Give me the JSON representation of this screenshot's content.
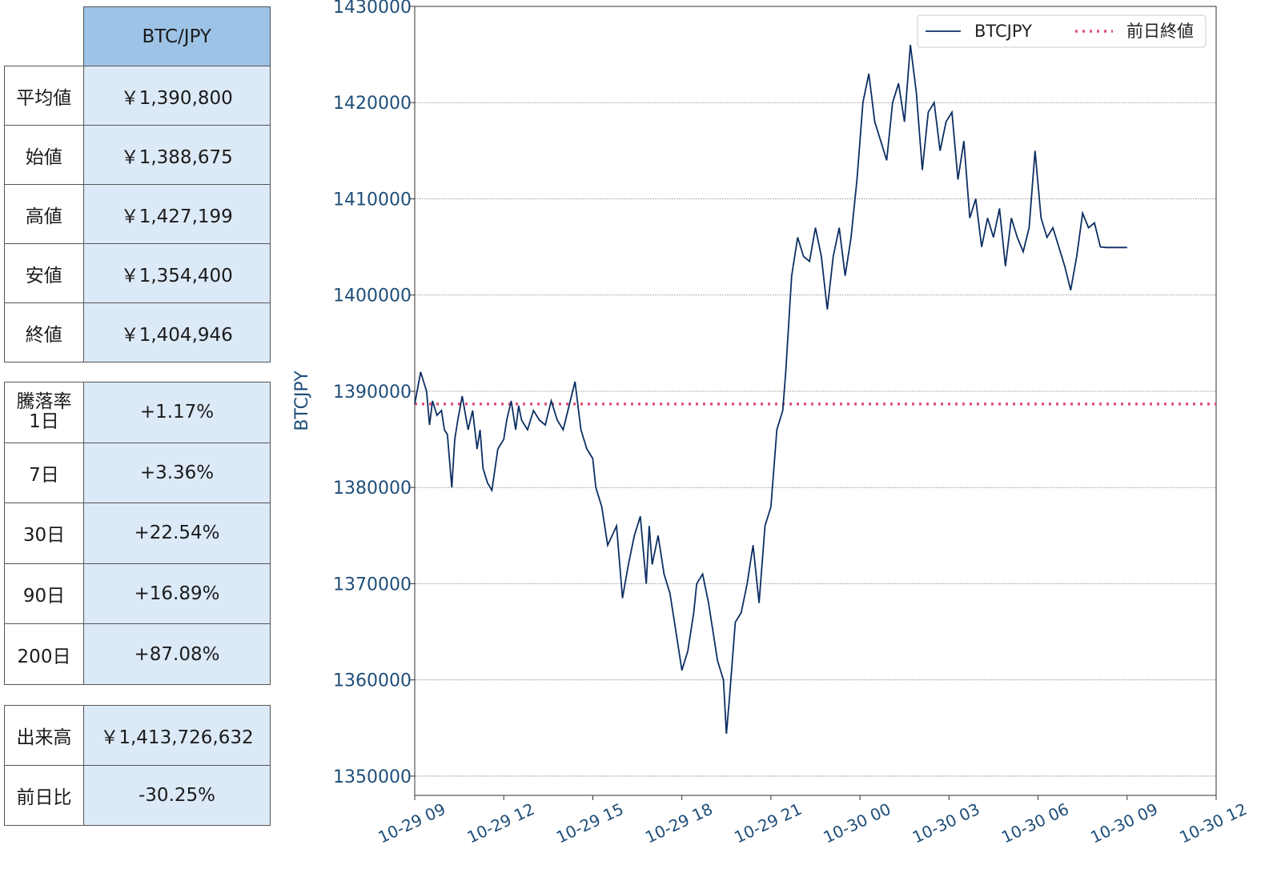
{
  "summary_table": {
    "header": "BTC/JPY",
    "rows": [
      {
        "label": "平均値",
        "value": "￥1,390,800"
      },
      {
        "label": "始値",
        "value": "￥1,388,675"
      },
      {
        "label": "高値",
        "value": "￥1,427,199"
      },
      {
        "label": "安値",
        "value": "￥1,354,400"
      },
      {
        "label": "終値",
        "value": "￥1,404,946"
      }
    ]
  },
  "change_table": {
    "first_label_line1": "騰落率",
    "first_label_line2": "1日",
    "rows": [
      {
        "label": "1日",
        "value": "+1.17%"
      },
      {
        "label": "7日",
        "value": "+3.36%"
      },
      {
        "label": "30日",
        "value": "+22.54%"
      },
      {
        "label": "90日",
        "value": "+16.89%"
      },
      {
        "label": "200日",
        "value": "+87.08%"
      }
    ]
  },
  "volume_table": {
    "rows": [
      {
        "label": "出来高",
        "value": "￥1,413,726,632"
      },
      {
        "label": "前日比",
        "value": "-30.25%"
      }
    ]
  },
  "chart_data": {
    "type": "line",
    "ylabel": "BTCJPY",
    "ylim": [
      1348000,
      1430000
    ],
    "yticks": [
      1350000,
      1360000,
      1370000,
      1380000,
      1390000,
      1400000,
      1410000,
      1420000,
      1430000
    ],
    "xlim_hours": [
      0,
      27
    ],
    "xticks": [
      "10-29 09",
      "10-29 12",
      "10-29 15",
      "10-29 18",
      "10-29 21",
      "10-30 00",
      "10-30 03",
      "10-30 06",
      "10-30 09",
      "10-30 12"
    ],
    "grid": "horizontal",
    "legend": "top-right",
    "colors": {
      "line": "#0d2f63",
      "ref": "#e0507a"
    },
    "series": [
      {
        "name": "BTCJPY",
        "x": [
          0,
          0.2,
          0.4,
          0.5,
          0.6,
          0.75,
          0.9,
          1.0,
          1.1,
          1.25,
          1.35,
          1.45,
          1.6,
          1.8,
          1.95,
          2.1,
          2.2,
          2.3,
          2.45,
          2.6,
          2.8,
          3.0,
          3.1,
          3.25,
          3.4,
          3.5,
          3.6,
          3.8,
          4.0,
          4.2,
          4.4,
          4.6,
          4.8,
          5.0,
          5.2,
          5.4,
          5.6,
          5.8,
          6.0,
          6.1,
          6.3,
          6.5,
          6.8,
          7.0,
          7.2,
          7.4,
          7.6,
          7.8,
          7.9,
          8.0,
          8.2,
          8.4,
          8.6,
          8.8,
          9.0,
          9.2,
          9.4,
          9.5,
          9.7,
          9.9,
          10.2,
          10.4,
          10.5,
          10.6,
          10.8,
          11.0,
          11.2,
          11.4,
          11.6,
          11.8,
          12.0,
          12.2,
          12.4,
          12.5,
          12.7,
          12.9,
          13.1,
          13.3,
          13.5,
          13.7,
          13.9,
          14.1,
          14.3,
          14.5,
          14.7,
          14.9,
          15.1,
          15.3,
          15.5,
          15.7,
          15.9,
          16.1,
          16.3,
          16.5,
          16.7,
          16.9,
          17.1,
          17.3,
          17.5,
          17.7,
          17.9,
          18.1,
          18.3,
          18.5,
          18.7,
          18.9,
          19.1,
          19.3,
          19.5,
          19.7,
          19.9,
          20.1,
          20.3,
          20.5,
          20.7,
          20.9,
          21.1,
          21.3,
          21.5,
          21.7,
          21.9,
          22.1,
          22.3,
          22.5,
          22.7,
          22.9,
          23.1,
          23.3,
          23.5,
          23.7,
          23.9,
          24.0
        ],
        "y": [
          1388675,
          1392000,
          1390000,
          1386500,
          1389000,
          1387500,
          1388000,
          1386000,
          1385500,
          1380000,
          1385000,
          1387000,
          1389500,
          1386000,
          1388000,
          1384000,
          1386000,
          1382000,
          1380500,
          1379700,
          1384000,
          1385000,
          1387000,
          1389000,
          1386000,
          1388500,
          1387000,
          1386000,
          1388000,
          1387000,
          1386500,
          1389000,
          1387000,
          1386000,
          1388500,
          1391000,
          1386000,
          1384000,
          1383000,
          1380000,
          1378000,
          1374000,
          1376000,
          1368500,
          1372000,
          1375000,
          1377000,
          1370000,
          1376000,
          1372000,
          1375000,
          1371000,
          1369000,
          1365000,
          1361000,
          1363000,
          1367000,
          1370000,
          1371000,
          1368000,
          1362000,
          1360000,
          1354400,
          1358000,
          1366000,
          1367000,
          1370000,
          1374000,
          1368000,
          1376000,
          1378000,
          1386000,
          1388000,
          1392000,
          1402000,
          1406000,
          1404000,
          1403500,
          1407000,
          1404000,
          1398500,
          1404000,
          1407000,
          1402000,
          1406000,
          1412000,
          1420000,
          1423000,
          1418000,
          1416000,
          1414000,
          1420000,
          1422000,
          1418000,
          1426000,
          1421000,
          1413000,
          1419000,
          1420000,
          1415000,
          1418000,
          1419000,
          1412000,
          1416000,
          1408000,
          1410000,
          1405000,
          1408000,
          1406000,
          1409000,
          1403000,
          1408000,
          1406000,
          1404500,
          1407000,
          1415000,
          1408000,
          1406000,
          1407000,
          1405000,
          1403000,
          1400500,
          1404000,
          1408500,
          1407000,
          1407500,
          1405000,
          1404946,
          1404946,
          1404946,
          1404946,
          1404946
        ]
      },
      {
        "name": "前日終値",
        "value": 1388675
      }
    ]
  }
}
